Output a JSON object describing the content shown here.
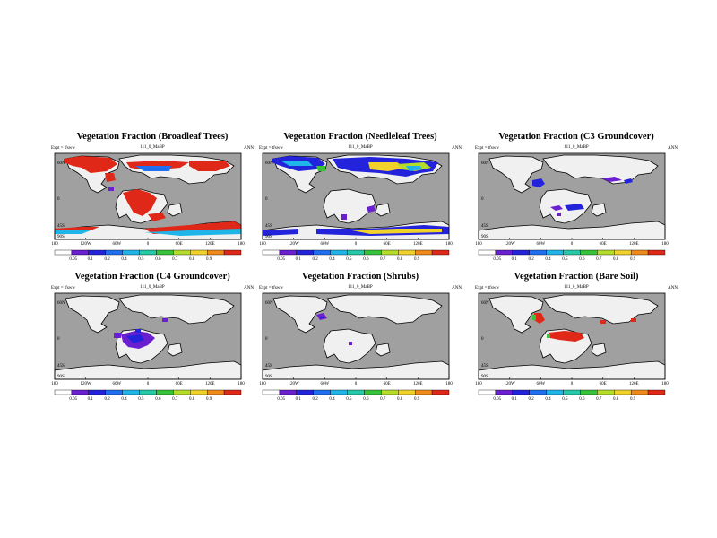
{
  "colorbar": {
    "colors": [
      "#ffffff",
      "#6a1fd0",
      "#2323dc",
      "#1f6ff0",
      "#1fb5e8",
      "#26c9a8",
      "#38c23a",
      "#b4dc2a",
      "#f0d22a",
      "#f08a1a",
      "#e02818"
    ]
  },
  "map_colors": {
    "ocean": "#a0a0a0",
    "land": "#f0f0f0",
    "outline": "#000000"
  },
  "panels": [
    {
      "id": "broadleaf",
      "title": "Vegetation Fraction (Broadleaf Trees)",
      "expt": "Expt = tfsww",
      "case": "111_0_MaBP",
      "season": "ANN",
      "yticks": [
        "60N",
        "0",
        "45S"
      ],
      "ytick_last": "90S",
      "xticks": [
        "180",
        "120W",
        "60W",
        "0",
        "60E",
        "120E",
        "180"
      ],
      "cbar_labels": [
        "0.05",
        "0.1",
        "0.2",
        "0.4",
        "0.5",
        "0.6",
        "0.7",
        "0.8",
        "0.9"
      ]
    },
    {
      "id": "needleleaf",
      "title": "Vegetation Fraction (Needleleaf Trees)",
      "expt": "Expt = tfsww",
      "case": "111_0_MaBP",
      "season": "ANN",
      "yticks": [
        "60N",
        "0",
        "45S"
      ],
      "ytick_last": "90S",
      "xticks": [
        "180",
        "120W",
        "60W",
        "0",
        "60E",
        "120E",
        "180"
      ],
      "cbar_labels": [
        "0.05",
        "0.1",
        "0.2",
        "0.4",
        "0.5",
        "0.6",
        "0.7",
        "0.8",
        "0.9"
      ]
    },
    {
      "id": "c3",
      "title": "Vegetation Fraction (C3 Groundcover)",
      "expt": "Expt = tfsww",
      "case": "111_0_MaBP",
      "season": "ANN",
      "yticks": [
        "60N",
        "0",
        "45S"
      ],
      "ytick_last": "90S",
      "xticks": [
        "180",
        "120W",
        "60W",
        "0",
        "60E",
        "120E",
        "180"
      ],
      "cbar_labels": [
        "0.05",
        "0.1",
        "0.2",
        "0.4",
        "0.5",
        "0.6",
        "0.7",
        "0.8",
        "0.9"
      ]
    },
    {
      "id": "c4",
      "title": "Vegetation Fraction (C4 Groundcover)",
      "expt": "Expt = tfsww",
      "case": "111_0_MaBP",
      "season": "ANN",
      "yticks": [
        "60N",
        "0",
        "45S"
      ],
      "ytick_last": "90S",
      "xticks": [
        "180",
        "120W",
        "60W",
        "0",
        "60E",
        "120E",
        "180"
      ],
      "cbar_labels": [
        "0.05",
        "0.1",
        "0.2",
        "0.4",
        "0.5",
        "0.6",
        "0.7",
        "0.8",
        "0.9"
      ]
    },
    {
      "id": "shrubs",
      "title": "Vegetation Fraction (Shrubs)",
      "expt": "Expt = tfsww",
      "case": "111_0_MaBP",
      "season": "ANN",
      "yticks": [
        "60N",
        "0",
        "45S"
      ],
      "ytick_last": "90S",
      "xticks": [
        "180",
        "120W",
        "60W",
        "0",
        "60E",
        "120E",
        "180"
      ],
      "cbar_labels": [
        "0.05",
        "0.1",
        "0.2",
        "0.4",
        "0.5",
        "0.6",
        "0.7",
        "0.8",
        "0.9"
      ]
    },
    {
      "id": "baresoil",
      "title": "Vegetation Fraction (Bare Soil)",
      "expt": "Expt = tfsww",
      "case": "111_0_MaBP",
      "season": "ANN",
      "yticks": [
        "60N",
        "0",
        "45S"
      ],
      "ytick_last": "90S",
      "xticks": [
        "180",
        "120W",
        "60W",
        "0",
        "60E",
        "120E",
        "180"
      ],
      "cbar_labels": [
        "0.05",
        "0.1",
        "0.2",
        "0.4",
        "0.5",
        "0.6",
        "0.7",
        "0.8",
        "0.9"
      ]
    }
  ]
}
